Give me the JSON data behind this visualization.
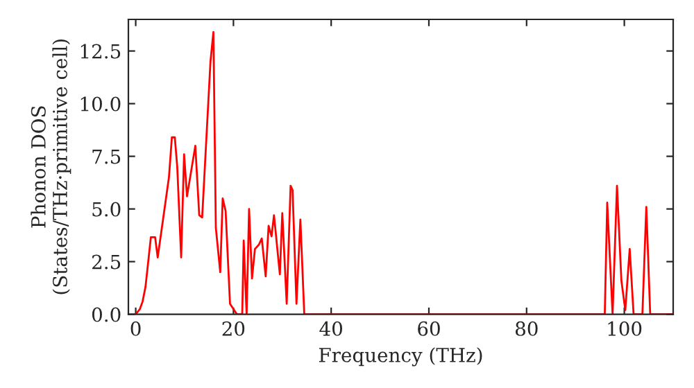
{
  "chart_data": {
    "type": "line",
    "xlabel": "Frequency (THz)",
    "ylabel": "Phonon DOS\n(States/THz·primitive cell)",
    "series": [
      {
        "color": "#ff0000",
        "x": [
          0,
          0.85,
          1.4,
          2,
          3.1,
          3.97,
          4.5,
          6.8,
          7.4,
          8,
          8.5,
          9.3,
          9.9,
          10.5,
          12.2,
          13,
          13.6,
          15.3,
          15.9,
          16.4,
          17.3,
          17.8,
          18.4,
          19.3,
          20.7,
          21.8,
          22.1,
          22.7,
          23.2,
          23.8,
          24.4,
          25.2,
          25.8,
          26.6,
          27.2,
          27.8,
          28.3,
          29.5,
          30,
          30.9,
          31.7,
          32.1,
          32.9,
          33.7,
          34.5,
          96,
          96.5,
          97.6,
          98.5,
          99.4,
          100.2,
          101.1,
          101.9,
          103.7,
          104.5,
          105.3,
          110
        ],
        "values": [
          0,
          0.25,
          0.6,
          1.3,
          3.66,
          3.66,
          2.7,
          6.5,
          8.4,
          8.4,
          7.0,
          2.7,
          7.6,
          5.6,
          8.0,
          4.7,
          4.6,
          12,
          13.4,
          4.1,
          2.0,
          5.5,
          4.9,
          0.5,
          0,
          0,
          3.5,
          0,
          5.0,
          1.7,
          3.1,
          3.3,
          3.6,
          1.8,
          4.2,
          3.7,
          4.7,
          1.9,
          4.8,
          0.5,
          6.1,
          5.9,
          0.5,
          4.5,
          0,
          0,
          5.3,
          0,
          6.1,
          1.6,
          0.2,
          3.1,
          0,
          0,
          5.1,
          0,
          0
        ]
      }
    ],
    "xlim": [
      -1.5,
      110
    ],
    "xticks": [
      0,
      20,
      40,
      60,
      80,
      100
    ],
    "ylim": [
      0,
      14
    ],
    "yticks": [
      {
        "value": 0,
        "label": "0.0"
      },
      2.5,
      {
        "value": 5,
        "label": "5.0"
      },
      7.5,
      {
        "value": 10,
        "label": "10.0"
      },
      12.5
    ],
    "grid": false,
    "legend": false
  }
}
